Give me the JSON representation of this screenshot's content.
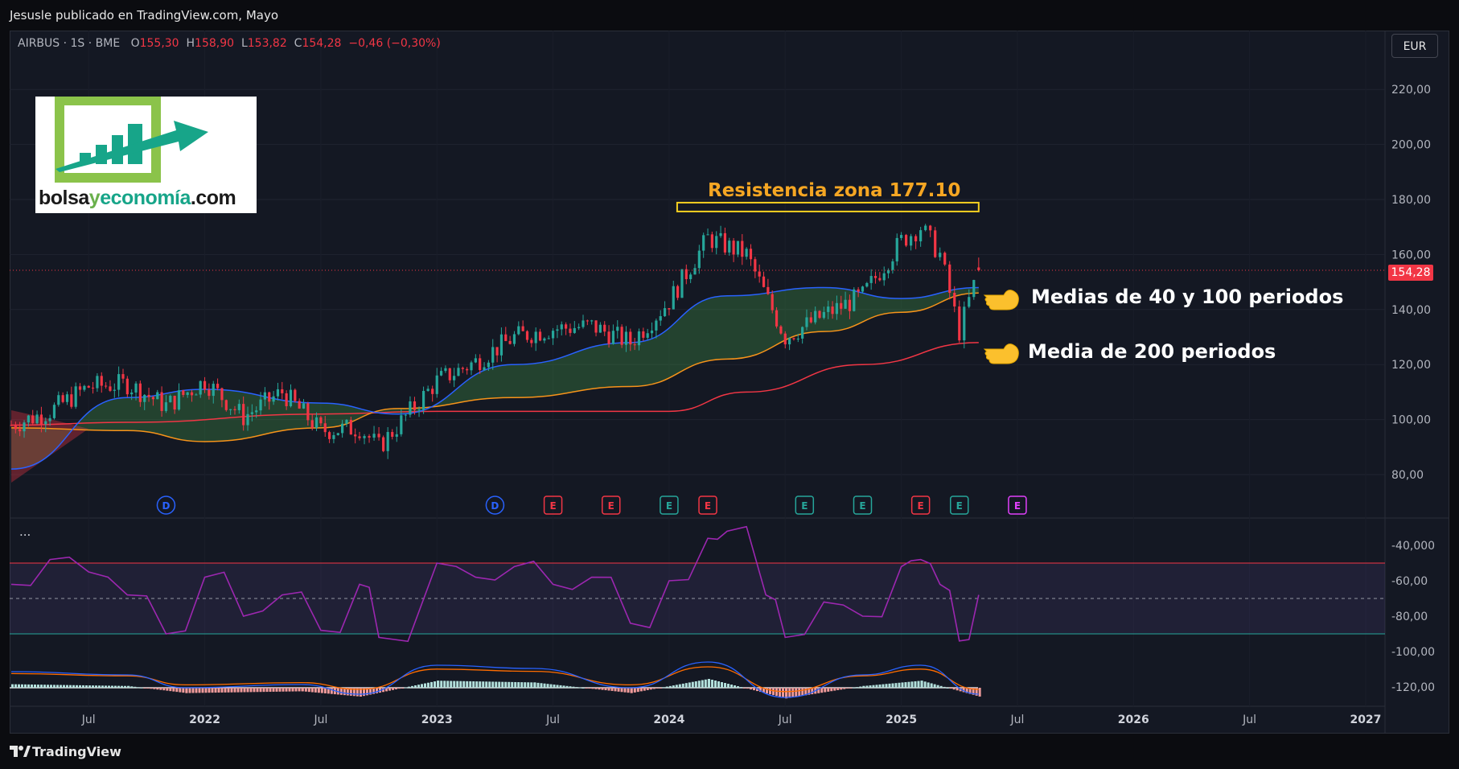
{
  "header": {
    "publisher": "Jesusle publicado en TradingView.com, Mayo"
  },
  "symbol_bar": {
    "symbol": "AIRBUS · 1S · BME",
    "open_label": "O",
    "open_value": "155,30",
    "high_label": "H",
    "high_value": "158,90",
    "low_label": "L",
    "low_value": "153,82",
    "close_label": "C",
    "close_value": "154,28",
    "change": "−0,46 (−0,30%)"
  },
  "currency": "EUR",
  "logo": {
    "text_part1": "bolsa",
    "text_part2": "y",
    "text_part3": "economía",
    "text_part4": ".com"
  },
  "annotations": {
    "resistance": "Resistencia zona 177.10",
    "ma_40_100": "Medias de 40 y 100 periodos",
    "ma_200": "Media de 200 periodos"
  },
  "last_price": "154,28",
  "rsi_menu": "...",
  "footer": {
    "brand": "TradingView"
  },
  "colors": {
    "background": "#141823",
    "up": "#26a69a",
    "down": "#f23645",
    "ma40": "#2962ff",
    "ma100": "#f7931a",
    "ma200": "#f23645",
    "rsi": "#9c27b0",
    "resistance": "#f5d020",
    "annotation_orange": "#f5a623"
  },
  "chart_data": [
    {
      "type": "candlestick",
      "title": "AIRBUS · 1S · BME",
      "y_axis_ticks": [
        "80,00",
        "100,00",
        "120,00",
        "140,00",
        "160,00",
        "180,00",
        "200,00",
        "220,00"
      ],
      "ylim": [
        75,
        230
      ],
      "x_axis_ticks": [
        "Jul",
        "2022",
        "Jul",
        "2023",
        "Jul",
        "2024",
        "Jul",
        "2025",
        "Jul",
        "2026",
        "Jul",
        "2027"
      ],
      "x_axis_ticks_bold": [
        "2022",
        "2023",
        "2024",
        "2025",
        "2026",
        "2027"
      ],
      "x_range": [
        "2021-03",
        "2027-02"
      ],
      "close_path": [
        {
          "date": "2021-03",
          "close": 98
        },
        {
          "date": "2021-05",
          "close": 103
        },
        {
          "date": "2021-07",
          "close": 112
        },
        {
          "date": "2021-09",
          "close": 113
        },
        {
          "date": "2021-11",
          "close": 105
        },
        {
          "date": "2022-01",
          "close": 114
        },
        {
          "date": "2022-03",
          "close": 101
        },
        {
          "date": "2022-05",
          "close": 110
        },
        {
          "date": "2022-07",
          "close": 96
        },
        {
          "date": "2022-09",
          "close": 97
        },
        {
          "date": "2022-10",
          "close": 90
        },
        {
          "date": "2023-01",
          "close": 114
        },
        {
          "date": "2023-03",
          "close": 121
        },
        {
          "date": "2023-05",
          "close": 130
        },
        {
          "date": "2023-07",
          "close": 133
        },
        {
          "date": "2023-09",
          "close": 134
        },
        {
          "date": "2023-11",
          "close": 128
        },
        {
          "date": "2024-01",
          "close": 143
        },
        {
          "date": "2024-03",
          "close": 166
        },
        {
          "date": "2024-05",
          "close": 160
        },
        {
          "date": "2024-07",
          "close": 130
        },
        {
          "date": "2024-09",
          "close": 138
        },
        {
          "date": "2024-11",
          "close": 145
        },
        {
          "date": "2025-01",
          "close": 165
        },
        {
          "date": "2025-02",
          "close": 170
        },
        {
          "date": "2025-03",
          "close": 160
        },
        {
          "date": "2025-04",
          "close": 132
        },
        {
          "date": "2025-05",
          "close": 154.28
        }
      ],
      "last_candle": {
        "open": 155.3,
        "high": 158.9,
        "low": 153.82,
        "close": 154.28
      },
      "resistance_level": 177.1,
      "series": [
        {
          "name": "MA40",
          "values": [
            {
              "date": "2021-03",
              "v": 82
            },
            {
              "date": "2021-09",
              "v": 108
            },
            {
              "date": "2022-01",
              "v": 111
            },
            {
              "date": "2022-07",
              "v": 106
            },
            {
              "date": "2022-11",
              "v": 102
            },
            {
              "date": "2023-05",
              "v": 120
            },
            {
              "date": "2023-11",
              "v": 128
            },
            {
              "date": "2024-04",
              "v": 145
            },
            {
              "date": "2024-09",
              "v": 148
            },
            {
              "date": "2025-01",
              "v": 144
            },
            {
              "date": "2025-05",
              "v": 148
            }
          ]
        },
        {
          "name": "MA100",
          "values": [
            {
              "date": "2021-03",
              "v": 97
            },
            {
              "date": "2021-09",
              "v": 96
            },
            {
              "date": "2022-01",
              "v": 92
            },
            {
              "date": "2022-07",
              "v": 97
            },
            {
              "date": "2022-11",
              "v": 104
            },
            {
              "date": "2023-05",
              "v": 108
            },
            {
              "date": "2023-11",
              "v": 112
            },
            {
              "date": "2024-04",
              "v": 122
            },
            {
              "date": "2024-09",
              "v": 132
            },
            {
              "date": "2025-01",
              "v": 139
            },
            {
              "date": "2025-05",
              "v": 146
            }
          ]
        },
        {
          "name": "MA200",
          "values": [
            {
              "date": "2021-03",
              "v": 98
            },
            {
              "date": "2021-09",
              "v": 99
            },
            {
              "date": "2022-07",
              "v": 102
            },
            {
              "date": "2023-01",
              "v": 103
            },
            {
              "date": "2023-11",
              "v": 103
            },
            {
              "date": "2024-01",
              "v": 103
            },
            {
              "date": "2024-05",
              "v": 110
            },
            {
              "date": "2024-11",
              "v": 120
            },
            {
              "date": "2025-05",
              "v": 128
            }
          ]
        }
      ],
      "events": [
        {
          "date": "2021-11",
          "label": "D",
          "kind": "dividend"
        },
        {
          "date": "2023-04",
          "label": "D",
          "kind": "dividend"
        },
        {
          "date": "2023-07",
          "label": "E",
          "kind": "earnings-down"
        },
        {
          "date": "2023-10",
          "label": "E",
          "kind": "earnings-down"
        },
        {
          "date": "2024-01",
          "label": "E",
          "kind": "earnings-up"
        },
        {
          "date": "2024-03",
          "label": "E",
          "kind": "earnings-down"
        },
        {
          "date": "2024-08",
          "label": "E",
          "kind": "earnings-up"
        },
        {
          "date": "2024-11",
          "label": "E",
          "kind": "earnings-up"
        },
        {
          "date": "2025-02",
          "label": "E",
          "kind": "earnings-down"
        },
        {
          "date": "2025-04",
          "label": "E",
          "kind": "earnings-up"
        },
        {
          "date": "2025-07",
          "label": "E",
          "kind": "earnings-future"
        }
      ]
    },
    {
      "type": "line",
      "title": "",
      "y_axis_ticks": [
        "-40,000",
        "-60,00",
        "-80,00",
        "-100,00",
        "-120,00"
      ],
      "ylim": [
        -125,
        -30
      ],
      "bands": {
        "upper": -50,
        "middle": -70,
        "lower": -90
      },
      "series": [
        {
          "name": "",
          "values": [
            {
              "date": "2021-03",
              "v": -62
            },
            {
              "date": "2021-05",
              "v": -48
            },
            {
              "date": "2021-07",
              "v": -55
            },
            {
              "date": "2021-09",
              "v": -68
            },
            {
              "date": "2021-11",
              "v": -90
            },
            {
              "date": "2022-01",
              "v": -58
            },
            {
              "date": "2022-03",
              "v": -80
            },
            {
              "date": "2022-05",
              "v": -68
            },
            {
              "date": "2022-07",
              "v": -88
            },
            {
              "date": "2022-09",
              "v": -62
            },
            {
              "date": "2022-10",
              "v": -92
            },
            {
              "date": "2023-01",
              "v": -50
            },
            {
              "date": "2023-03",
              "v": -58
            },
            {
              "date": "2023-05",
              "v": -52
            },
            {
              "date": "2023-07",
              "v": -62
            },
            {
              "date": "2023-09",
              "v": -58
            },
            {
              "date": "2023-11",
              "v": -84
            },
            {
              "date": "2024-01",
              "v": -60
            },
            {
              "date": "2024-03",
              "v": -36
            },
            {
              "date": "2024-04",
              "v": -32
            },
            {
              "date": "2024-06",
              "v": -68
            },
            {
              "date": "2024-07",
              "v": -92
            },
            {
              "date": "2024-09",
              "v": -72
            },
            {
              "date": "2024-11",
              "v": -80
            },
            {
              "date": "2025-01",
              "v": -52
            },
            {
              "date": "2025-02",
              "v": -48
            },
            {
              "date": "2025-03",
              "v": -62
            },
            {
              "date": "2025-04",
              "v": -94
            },
            {
              "date": "2025-05",
              "v": -68
            }
          ]
        }
      ]
    },
    {
      "type": "bar",
      "title": "",
      "comment_free": true,
      "series": [
        {
          "name": "",
          "values": [
            {
              "date": "2021-03",
              "v": 0.2
            },
            {
              "date": "2021-09",
              "v": 0.1
            },
            {
              "date": "2021-12",
              "v": -0.3
            },
            {
              "date": "2022-06",
              "v": -0.2
            },
            {
              "date": "2022-09",
              "v": -0.5
            },
            {
              "date": "2023-01",
              "v": 0.4
            },
            {
              "date": "2023-06",
              "v": 0.3
            },
            {
              "date": "2023-11",
              "v": -0.3
            },
            {
              "date": "2024-03",
              "v": 0.5
            },
            {
              "date": "2024-07",
              "v": -0.6
            },
            {
              "date": "2024-11",
              "v": 0.1
            },
            {
              "date": "2025-02",
              "v": 0.4
            },
            {
              "date": "2025-05",
              "v": -0.5
            }
          ]
        }
      ]
    }
  ]
}
